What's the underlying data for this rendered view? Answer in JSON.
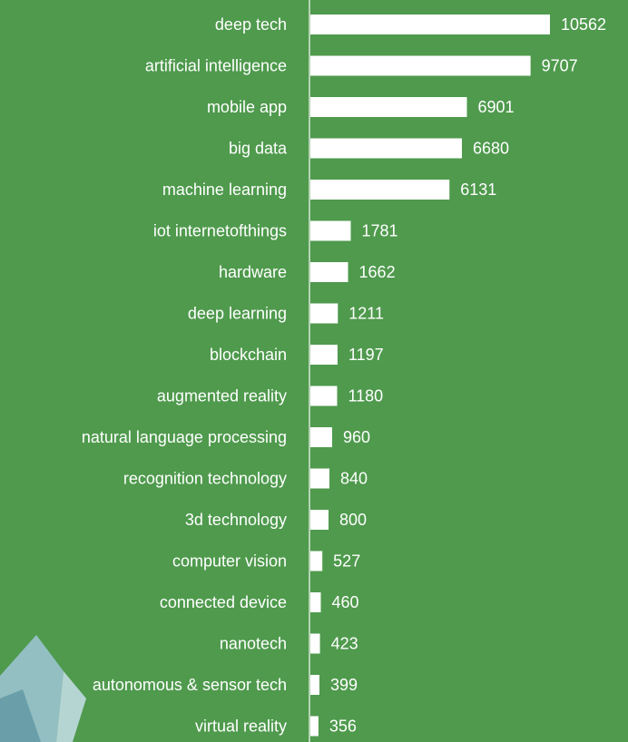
{
  "chart_data": {
    "type": "bar",
    "orientation": "horizontal",
    "categories": [
      "deep tech",
      "artificial intelligence",
      "mobile app",
      "big data",
      "machine learning",
      "iot internetofthings",
      "hardware",
      "deep learning",
      "blockchain",
      "augmented reality",
      "natural language processing",
      "recognition technology",
      "3d technology",
      "computer vision",
      "connected device",
      "nanotech",
      "autonomous & sensor tech",
      "virtual reality"
    ],
    "values": [
      10562,
      9707,
      6901,
      6680,
      6131,
      1781,
      1662,
      1211,
      1197,
      1180,
      960,
      840,
      800,
      527,
      460,
      423,
      399,
      356
    ],
    "color": "#ffffff"
  }
}
